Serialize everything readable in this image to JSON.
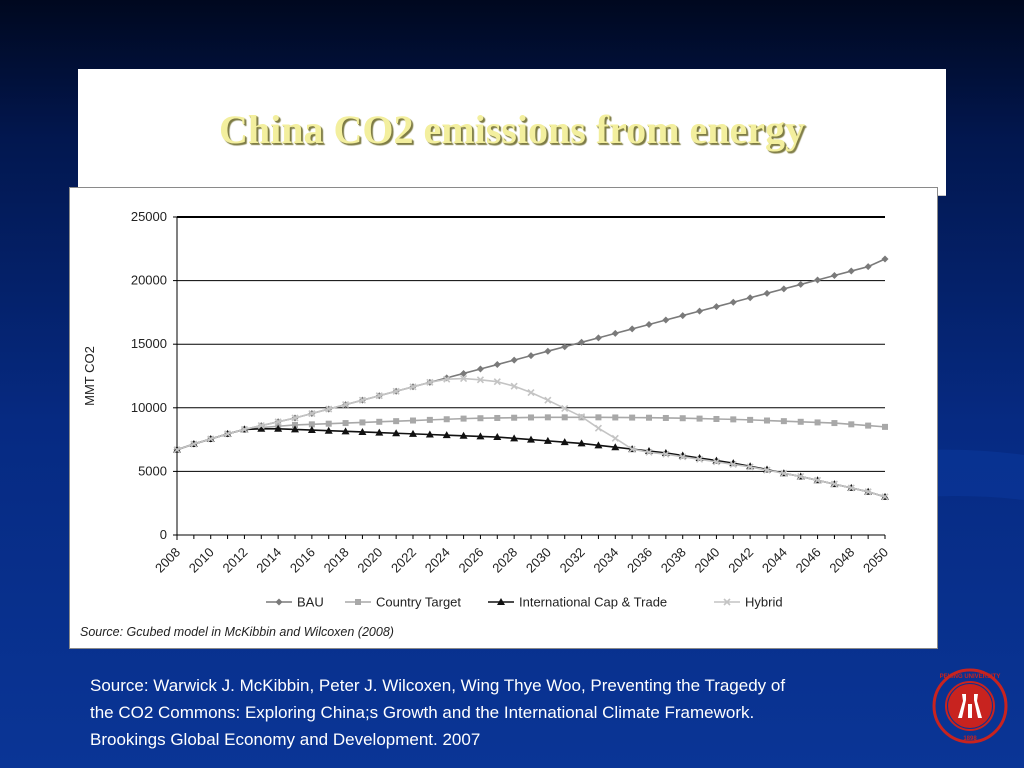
{
  "slide": {
    "title": "China CO2 emissions from energy",
    "citation_lines": [
      "Source:  Warwick J. McKibbin, Peter J. Wilcoxen, Wing Thye Woo,  Preventing the Tragedy of",
      "the CO2 Commons: Exploring China;s Growth and the International Climate Framework.",
      "Brookings Global Economy and Development. 2007"
    ],
    "logo_text": "PEKING UNIVERSITY 1898"
  },
  "chart_source": "Source: Gcubed model in McKibbin and Wilcoxen (2008)",
  "chart_data": {
    "type": "line",
    "title": "",
    "xlabel": "",
    "ylabel": "MMT CO2",
    "ylim": [
      0,
      25000
    ],
    "yticks": [
      0,
      5000,
      10000,
      15000,
      20000,
      25000
    ],
    "ytick_labels": [
      "0",
      "5000",
      "10000",
      "15000",
      "20000",
      "25000"
    ],
    "xlim": [
      2008,
      2050
    ],
    "xticks": [
      2008,
      2010,
      2012,
      2014,
      2016,
      2018,
      2020,
      2022,
      2024,
      2026,
      2028,
      2030,
      2032,
      2034,
      2036,
      2038,
      2040,
      2042,
      2044,
      2046,
      2048,
      2050
    ],
    "xtick_labels": [
      "2008",
      "2010",
      "2012",
      "2014",
      "2016",
      "2018",
      "2020",
      "2022",
      "2024",
      "2026",
      "2028",
      "2030",
      "2032",
      "2034",
      "2036",
      "2038",
      "2040",
      "2042",
      "2044",
      "2046",
      "2048",
      "2050"
    ],
    "grid": "horizontal",
    "legend_position": "bottom",
    "x": [
      2008,
      2009,
      2010,
      2011,
      2012,
      2013,
      2014,
      2015,
      2016,
      2017,
      2018,
      2019,
      2020,
      2021,
      2022,
      2023,
      2024,
      2025,
      2026,
      2027,
      2028,
      2029,
      2030,
      2031,
      2032,
      2033,
      2034,
      2035,
      2036,
      2037,
      2038,
      2039,
      2040,
      2041,
      2042,
      2043,
      2044,
      2045,
      2046,
      2047,
      2048,
      2049,
      2050
    ],
    "series": [
      {
        "name": "BAU",
        "marker": "diamond",
        "color": "#7a7a7a",
        "values": [
          6700,
          7150,
          7550,
          7950,
          8300,
          8600,
          8900,
          9200,
          9550,
          9900,
          10250,
          10600,
          10950,
          11300,
          11650,
          12000,
          12350,
          12700,
          13050,
          13400,
          13750,
          14100,
          14450,
          14800,
          15150,
          15500,
          15850,
          16200,
          16550,
          16900,
          17250,
          17600,
          17950,
          18300,
          18650,
          19000,
          19350,
          19700,
          20050,
          20400,
          20750,
          21100,
          21700
        ]
      },
      {
        "name": "Country Target",
        "marker": "square",
        "color": "#a8a8a8",
        "values": [
          6700,
          7150,
          7550,
          7950,
          8300,
          8450,
          8550,
          8650,
          8700,
          8750,
          8800,
          8850,
          8900,
          8950,
          9000,
          9050,
          9100,
          9150,
          9180,
          9200,
          9220,
          9240,
          9250,
          9250,
          9250,
          9250,
          9240,
          9230,
          9220,
          9200,
          9180,
          9150,
          9120,
          9090,
          9050,
          9000,
          8950,
          8900,
          8850,
          8800,
          8700,
          8600,
          8500
        ]
      },
      {
        "name": "International Cap & Trade",
        "marker": "triangle",
        "color": "#111111",
        "values": [
          6700,
          7150,
          7550,
          7950,
          8300,
          8350,
          8350,
          8300,
          8250,
          8200,
          8150,
          8100,
          8050,
          8000,
          7950,
          7900,
          7850,
          7800,
          7750,
          7700,
          7600,
          7500,
          7400,
          7300,
          7200,
          7050,
          6900,
          6750,
          6600,
          6450,
          6250,
          6050,
          5850,
          5650,
          5400,
          5150,
          4850,
          4600,
          4300,
          4000,
          3700,
          3400,
          3000
        ]
      },
      {
        "name": "Hybrid",
        "marker": "x",
        "color": "#c4c4c4",
        "values": [
          6700,
          7150,
          7550,
          7950,
          8300,
          8600,
          8900,
          9200,
          9550,
          9900,
          10250,
          10600,
          10950,
          11300,
          11650,
          12000,
          12250,
          12300,
          12200,
          12050,
          11700,
          11200,
          10600,
          9950,
          9300,
          8400,
          7600,
          6750,
          6500,
          6350,
          6150,
          5950,
          5750,
          5550,
          5350,
          5100,
          4850,
          4600,
          4300,
          4000,
          3700,
          3400,
          3000
        ]
      }
    ]
  }
}
